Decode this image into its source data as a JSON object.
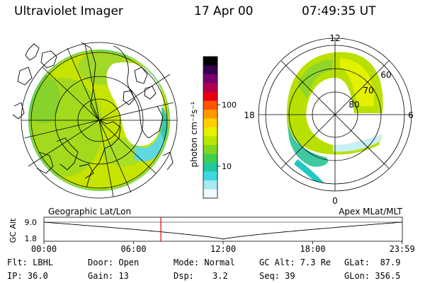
{
  "header": {
    "instrument": "Ultraviolet Imager",
    "date": "17 Apr 00",
    "time": "07:49:35 UT"
  },
  "colorbar": {
    "unit_label": "photon cm⁻²s⁻¹",
    "tick_100": "100",
    "tick_10": "10",
    "colors": [
      "#000000",
      "#3a0050",
      "#7a0070",
      "#b00050",
      "#e80010",
      "#ff5500",
      "#ff9a00",
      "#ffd000",
      "#e6f000",
      "#b8e600",
      "#7fd820",
      "#3fce50",
      "#20c8a0",
      "#40d8e0",
      "#a8e8f0",
      "#f0f8ff"
    ]
  },
  "left_map": {
    "title": "Geographic Lat/Lon",
    "fill_color": "#c8e600"
  },
  "right_map": {
    "title": "Apex MLat/MLT",
    "mlt_12": "12",
    "mlt_18": "18",
    "mlt_6": "6",
    "mlt_0": "0",
    "lat_60": "60",
    "lat_70": "70",
    "lat_80": "80"
  },
  "timeline": {
    "axis_label": "GC Alt",
    "y_top": "9.0",
    "y_bottom": "1.8",
    "x_ticks": [
      "00:00",
      "06:00",
      "12:00",
      "18:00",
      "23:59"
    ],
    "current_marker_hour": 7.83
  },
  "info": {
    "flt": "Flt: LBHL",
    "ip": "IP: 36.0",
    "door": "Door: Open",
    "gain": "Gain: 13",
    "mode": "Mode: Normal",
    "dsp_label": "Dsp:",
    "dsp_value": "3.2",
    "gc_alt": "GC Alt: 7.3 Re",
    "seq": "Seq: 39",
    "glat": "GLat:  87.9",
    "glon": "GLon: 356.5"
  }
}
